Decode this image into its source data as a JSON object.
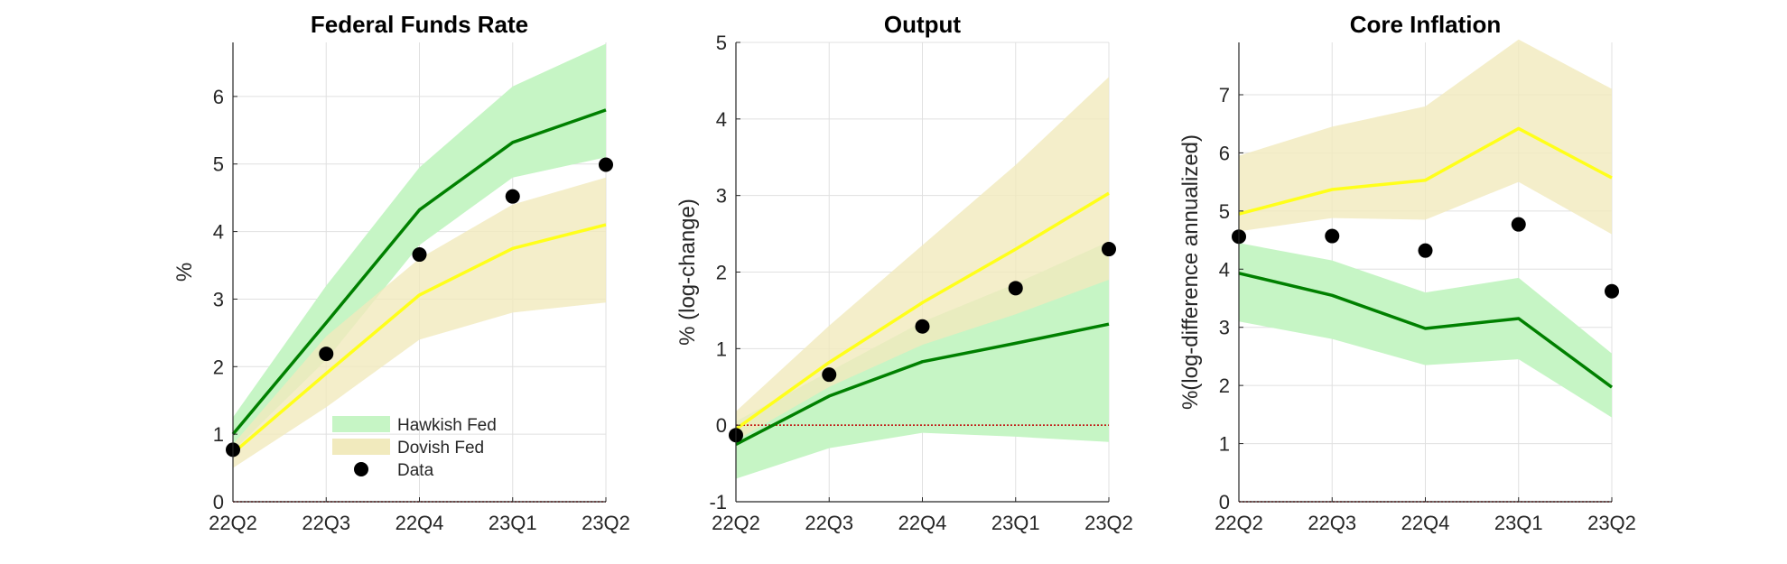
{
  "figure": {
    "categories": [
      "22Q2",
      "22Q3",
      "22Q4",
      "23Q1",
      "23Q2"
    ],
    "colors": {
      "hawkish_band": "#c6f5c5",
      "dovish_band": "#f1eabd",
      "hawkish_line": "#008000",
      "dovish_line": "#ffff1a",
      "data_marker": "#000000",
      "zero_line": "#c00000",
      "grid": "#e0e0e0",
      "axis": "#262626"
    }
  },
  "chart_data": [
    {
      "type": "line",
      "title": "Federal Funds Rate",
      "ylabel": "%",
      "ylim": [
        0,
        6.8
      ],
      "yticks": [
        0,
        1,
        2,
        3,
        4,
        5,
        6
      ],
      "categories": [
        "22Q2",
        "22Q3",
        "22Q4",
        "23Q1",
        "23Q2"
      ],
      "grid": true,
      "zero_line": true,
      "legend": {
        "placement": "bottom-center",
        "entries": [
          "Hawkish Fed",
          "Dovish Fed",
          "Data"
        ]
      },
      "series": [
        {
          "name": "Hawkish Fed",
          "kind": "line_band",
          "values": [
            1.0,
            2.65,
            4.32,
            5.32,
            5.8
          ],
          "lower": [
            0.75,
            2.1,
            3.8,
            4.8,
            5.1
          ],
          "upper": [
            1.25,
            3.2,
            4.95,
            6.15,
            6.78
          ]
        },
        {
          "name": "Dovish Fed",
          "kind": "line_band",
          "values": [
            0.72,
            1.9,
            3.06,
            3.75,
            4.1
          ],
          "lower": [
            0.5,
            1.4,
            2.4,
            2.8,
            2.95
          ],
          "upper": [
            0.85,
            2.45,
            3.6,
            4.4,
            4.8
          ]
        },
        {
          "name": "Data",
          "kind": "scatter",
          "values": [
            0.77,
            2.19,
            3.66,
            4.52,
            4.99
          ]
        }
      ]
    },
    {
      "type": "line",
      "title": "Output",
      "ylabel": "% (log-change)",
      "ylim": [
        -1,
        5
      ],
      "yticks": [
        -1,
        0,
        1,
        2,
        3,
        4,
        5
      ],
      "categories": [
        "22Q2",
        "22Q3",
        "22Q4",
        "23Q1",
        "23Q2"
      ],
      "grid": true,
      "zero_line": true,
      "series": [
        {
          "name": "Hawkish Fed",
          "kind": "line_band",
          "values": [
            -0.25,
            0.38,
            0.83,
            1.07,
            1.32
          ],
          "lower": [
            -0.7,
            -0.3,
            -0.1,
            -0.15,
            -0.22
          ],
          "upper": [
            0.05,
            0.7,
            1.35,
            1.85,
            2.4
          ]
        },
        {
          "name": "Dovish Fed",
          "kind": "line_band",
          "values": [
            -0.05,
            0.82,
            1.6,
            2.3,
            3.03
          ],
          "lower": [
            -0.2,
            0.5,
            1.05,
            1.45,
            1.9
          ],
          "upper": [
            0.18,
            1.3,
            2.35,
            3.4,
            4.55
          ]
        },
        {
          "name": "Data",
          "kind": "scatter",
          "values": [
            -0.13,
            0.66,
            1.29,
            1.79,
            2.3
          ]
        }
      ]
    },
    {
      "type": "line",
      "title": "Core Inflation",
      "ylabel": "%(log-difference annualized)",
      "ylim": [
        0,
        7.9
      ],
      "yticks": [
        0,
        1,
        2,
        3,
        4,
        5,
        6,
        7
      ],
      "categories": [
        "22Q2",
        "22Q3",
        "22Q4",
        "23Q1",
        "23Q2"
      ],
      "grid": true,
      "zero_line": true,
      "series": [
        {
          "name": "Hawkish Fed",
          "kind": "line_band",
          "values": [
            3.93,
            3.55,
            2.98,
            3.15,
            1.97
          ],
          "lower": [
            3.1,
            2.8,
            2.35,
            2.45,
            1.45
          ],
          "upper": [
            4.45,
            4.15,
            3.6,
            3.85,
            2.55
          ]
        },
        {
          "name": "Dovish Fed",
          "kind": "line_band",
          "values": [
            4.95,
            5.37,
            5.53,
            6.42,
            5.57
          ],
          "lower": [
            4.65,
            4.88,
            4.85,
            5.5,
            4.6
          ],
          "upper": [
            5.95,
            6.45,
            6.8,
            7.95,
            7.1
          ]
        },
        {
          "name": "Data",
          "kind": "scatter",
          "values": [
            4.56,
            4.57,
            4.32,
            4.77,
            3.62
          ]
        }
      ]
    }
  ]
}
